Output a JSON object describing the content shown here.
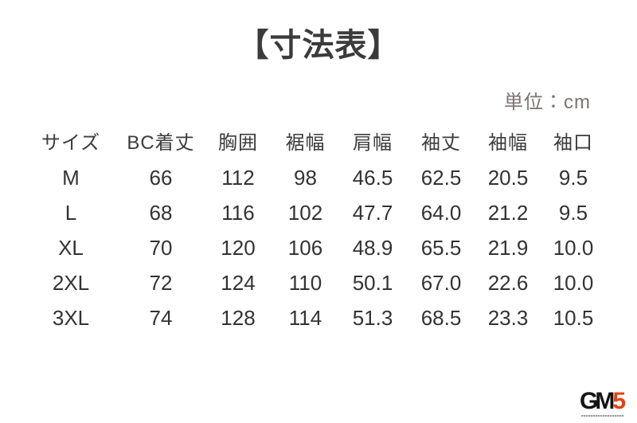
{
  "page": {
    "title": "【寸法表】",
    "unit_label": "単位：cm"
  },
  "table": {
    "columns": [
      "サイズ",
      "BC着丈",
      "胸囲",
      "裾幅",
      "肩幅",
      "袖丈",
      "袖幅",
      "袖口"
    ],
    "rows": [
      {
        "size": "M",
        "values": [
          "66",
          "112",
          "98",
          "46.5",
          "62.5",
          "20.5",
          "9.5"
        ]
      },
      {
        "size": "L",
        "values": [
          "68",
          "116",
          "102",
          "47.7",
          "64.0",
          "21.2",
          "9.5"
        ]
      },
      {
        "size": "XL",
        "values": [
          "70",
          "120",
          "106",
          "48.9",
          "65.5",
          "21.9",
          "10.0"
        ]
      },
      {
        "size": "2XL",
        "values": [
          "72",
          "124",
          "110",
          "50.1",
          "67.0",
          "22.6",
          "10.0"
        ]
      },
      {
        "size": "3XL",
        "values": [
          "74",
          "128",
          "114",
          "51.3",
          "68.5",
          "23.3",
          "10.5"
        ]
      }
    ]
  },
  "logo": {
    "text_black": "GM",
    "text_accent": "5",
    "accent_color": "#e8400f"
  },
  "chart_data": {
    "type": "table",
    "title": "【寸法表】",
    "unit": "cm",
    "columns": [
      "サイズ",
      "BC着丈",
      "胸囲",
      "裾幅",
      "肩幅",
      "袖丈",
      "袖幅",
      "袖口"
    ],
    "rows": [
      [
        "M",
        66,
        112,
        98,
        46.5,
        62.5,
        20.5,
        9.5
      ],
      [
        "L",
        68,
        116,
        102,
        47.7,
        64.0,
        21.2,
        9.5
      ],
      [
        "XL",
        70,
        120,
        106,
        48.9,
        65.5,
        21.9,
        10.0
      ],
      [
        "2XL",
        72,
        124,
        110,
        50.1,
        67.0,
        22.6,
        10.0
      ],
      [
        "3XL",
        74,
        128,
        114,
        51.3,
        68.5,
        23.3,
        10.5
      ]
    ]
  }
}
